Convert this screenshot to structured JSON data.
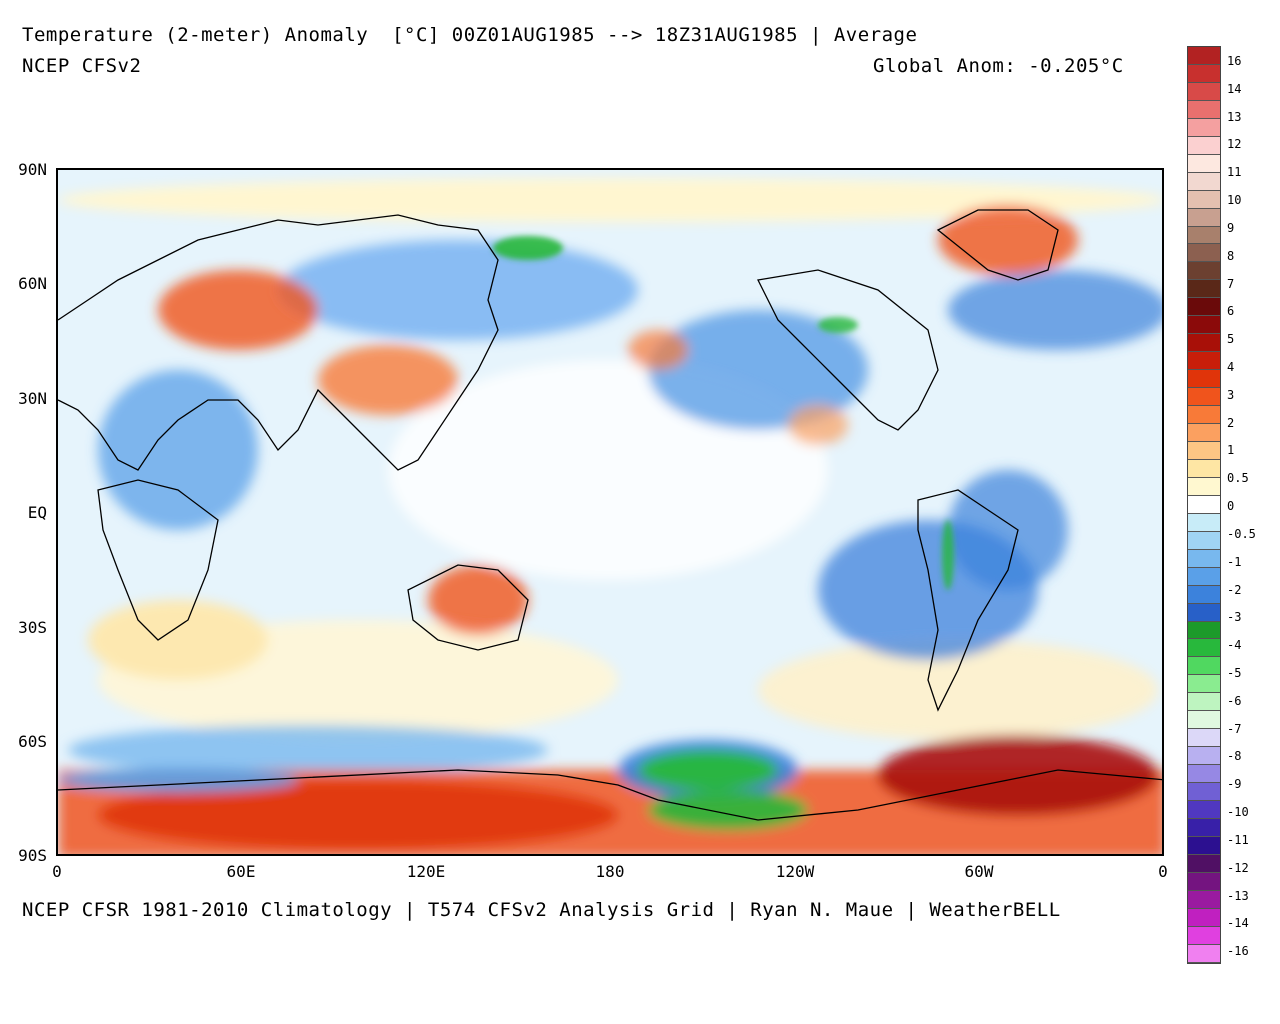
{
  "header": {
    "title": "Temperature (2-meter) Anomaly  [°C] 00Z01AUG1985 --> 18Z31AUG1985 | Average",
    "model": "NCEP CFSv2",
    "global_anom": "Global Anom: -0.205°C"
  },
  "footer": "NCEP CFSR 1981-2010 Climatology | T574 CFSv2 Analysis Grid | Ryan N. Maue | WeatherBELL",
  "axes": {
    "lat_labels": [
      "90N",
      "60N",
      "30N",
      "EQ",
      "30S",
      "60S",
      "90S"
    ],
    "lon_labels": [
      "0",
      "60E",
      "120E",
      "180",
      "120W",
      "60W",
      "0"
    ]
  },
  "colorbar": {
    "labels": [
      "16",
      "14",
      "13",
      "12",
      "11",
      "10",
      "9",
      "8",
      "7",
      "6",
      "5",
      "4",
      "3",
      "2",
      "1",
      "0.5",
      "0",
      "-0.5",
      "-1",
      "-2",
      "-3",
      "-4",
      "-5",
      "-6",
      "-7",
      "-8",
      "-9",
      "-10",
      "-11",
      "-12",
      "-13",
      "-14",
      "-16"
    ],
    "colors": [
      "#b22222",
      "#c8302e",
      "#d84a48",
      "#e8706e",
      "#f4a0a0",
      "#fbd0d0",
      "#fde8e0",
      "#f2d8d0",
      "#e4c0b0",
      "#c8a090",
      "#a8806c",
      "#8c6050",
      "#6c4030",
      "#5a2818",
      "#6a0a0a",
      "#8b0a0a",
      "#a81008",
      "#c81e0a",
      "#e0340a",
      "#f0541c",
      "#f87a38",
      "#fba060",
      "#fdc684",
      "#fee6a4",
      "#fff8d0",
      "#ffffff",
      "#c8ecf8",
      "#a0d4f4",
      "#78b8ee",
      "#5aa0e8",
      "#3c82dc",
      "#2860c8",
      "#1c9a2a",
      "#28b83c",
      "#50d860",
      "#8aec90",
      "#bef4c0",
      "#e0f8e0",
      "#dcd8f8",
      "#b8b0f0",
      "#9688e4",
      "#7060d4",
      "#5038c0",
      "#3820a8",
      "#2c1090",
      "#501064",
      "#741480",
      "#9a1aa0",
      "#c020c0",
      "#e040e0",
      "#f080f0"
    ]
  },
  "map": {
    "land_color": "#000000",
    "ocean_base": "#eaf6ff"
  }
}
